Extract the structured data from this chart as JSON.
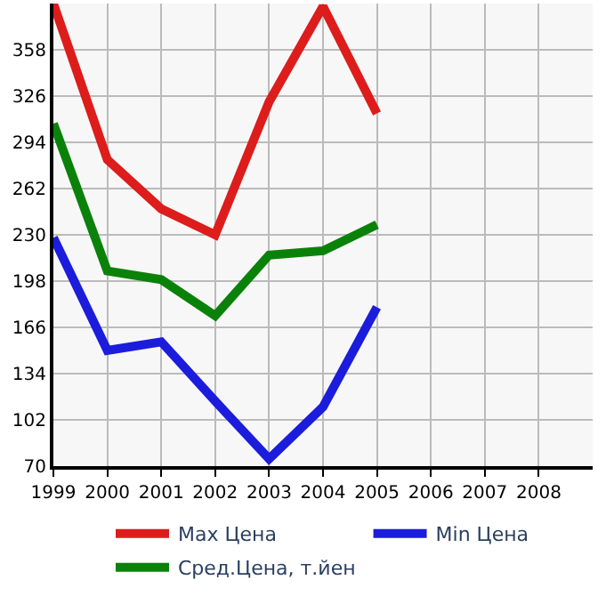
{
  "chart_data": {
    "type": "line",
    "x": [
      1999,
      2000,
      2001,
      2002,
      2003,
      2004,
      2005
    ],
    "series": [
      {
        "name": "Max Цена",
        "color": "#dd1c1c",
        "values": [
          390,
          282,
          248,
          230,
          322,
          388,
          314
        ]
      },
      {
        "name": "Min Цена",
        "color": "#1c1cdd",
        "values": [
          228,
          150,
          156,
          115,
          75,
          111,
          180
        ]
      },
      {
        "name": "Сред.Цена, т.йен",
        "color": "#0a820a",
        "values": [
          307,
          205,
          199,
          174,
          216,
          219,
          237
        ]
      }
    ],
    "xlim": [
      1999,
      2009
    ],
    "xticks": [
      1999,
      2000,
      2001,
      2002,
      2003,
      2004,
      2005,
      2006,
      2007,
      2008
    ],
    "ylim": [
      70,
      390
    ],
    "yticks": [
      70,
      102,
      134,
      166,
      198,
      230,
      262,
      294,
      326,
      358
    ],
    "grid": true,
    "legend": "bottom",
    "marker": "none",
    "line_style": "solid"
  }
}
